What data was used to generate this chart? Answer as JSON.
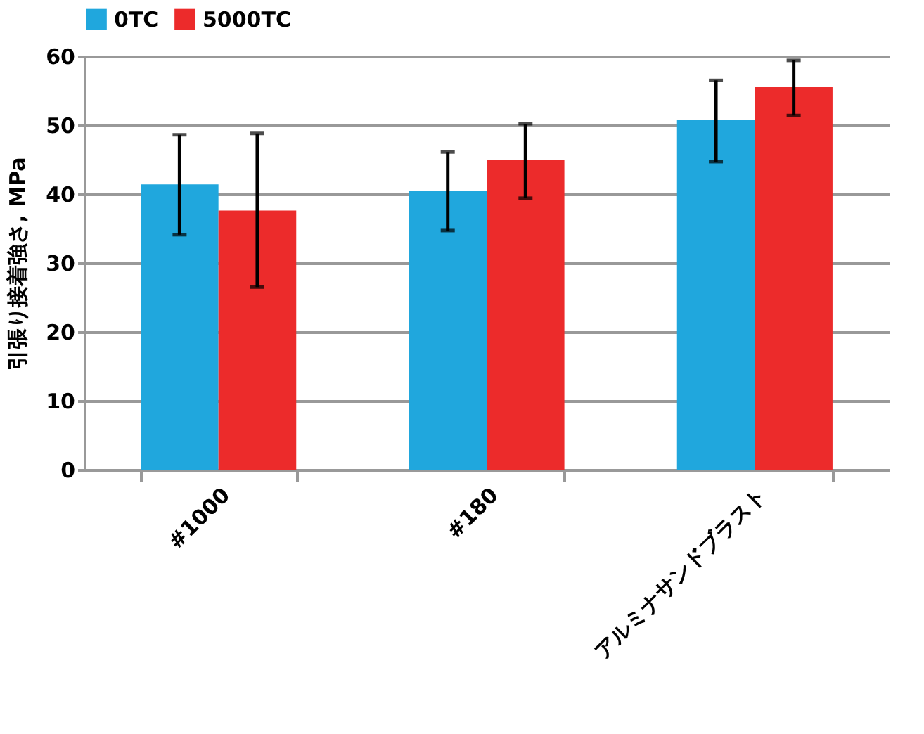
{
  "chart_data": {
    "type": "bar",
    "ylabel": "引張り接着強さ, MPa",
    "categories": [
      "#1000",
      "#180",
      "アルミナサンドブラスト"
    ],
    "series": [
      {
        "name": "0TC",
        "color": "#20a7dd",
        "values": [
          41.4,
          40.4,
          50.8
        ],
        "errors": [
          [
            34.1,
            48.6
          ],
          [
            34.7,
            46.1
          ],
          [
            44.7,
            56.5
          ]
        ]
      },
      {
        "name": "5000TC",
        "color": "#ec2b2b",
        "values": [
          37.6,
          44.9,
          55.5
        ],
        "errors": [
          [
            26.5,
            48.8
          ],
          [
            39.4,
            50.2
          ],
          [
            51.4,
            59.4
          ]
        ]
      }
    ],
    "ylim": [
      0,
      60
    ],
    "yticks": [
      0,
      10,
      20,
      30,
      40,
      50,
      60
    ],
    "grid": "y",
    "legend": "top"
  }
}
